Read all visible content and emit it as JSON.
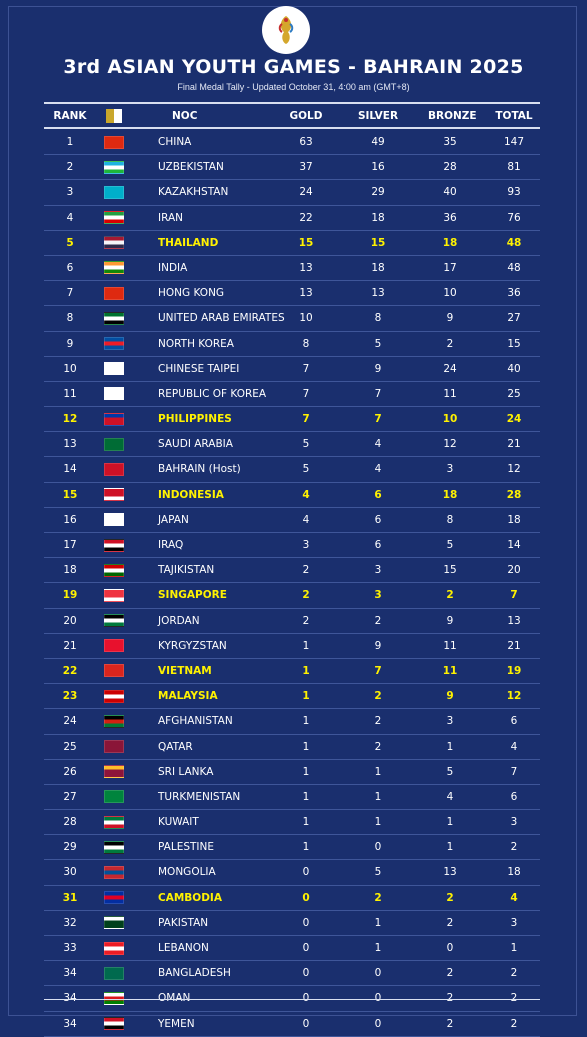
{
  "header": {
    "title": "3rd ASIAN YOUTH GAMES - BAHRAIN 2025",
    "subtitle": "Final Medal Tally  -  Updated October 31, 4:00 am (GMT+8)"
  },
  "colors": {
    "background": "#1a2f6e",
    "highlight": "#fff200",
    "text": "#ffffff"
  },
  "table": {
    "columns": {
      "rank": "RANK",
      "flag_icon": "flags-icon",
      "noc": "NOC",
      "gold": "GOLD",
      "silver": "SILVER",
      "bronze": "BRONZE",
      "total": "TOTAL"
    },
    "rows": [
      {
        "rank": "1",
        "noc": "CHINA",
        "gold": "63",
        "silver": "49",
        "bronze": "35",
        "total": "147",
        "highlight": false,
        "flag": [
          "#de2910",
          "#de2910",
          "#de2910"
        ]
      },
      {
        "rank": "2",
        "noc": "UZBEKISTAN",
        "gold": "37",
        "silver": "16",
        "bronze": "28",
        "total": "81",
        "highlight": false,
        "flag": [
          "#1eb3e0",
          "#ffffff",
          "#1eb53a"
        ]
      },
      {
        "rank": "3",
        "noc": "KAZAKHSTAN",
        "gold": "24",
        "silver": "29",
        "bronze": "40",
        "total": "93",
        "highlight": false,
        "flag": [
          "#00afca",
          "#00afca",
          "#00afca"
        ]
      },
      {
        "rank": "4",
        "noc": "IRAN",
        "gold": "22",
        "silver": "18",
        "bronze": "36",
        "total": "76",
        "highlight": false,
        "flag": [
          "#239f40",
          "#ffffff",
          "#da0000"
        ]
      },
      {
        "rank": "5",
        "noc": "THAILAND",
        "gold": "15",
        "silver": "15",
        "bronze": "18",
        "total": "48",
        "highlight": true,
        "flag": [
          "#a51931",
          "#f4f5f8",
          "#2d2a4a"
        ]
      },
      {
        "rank": "6",
        "noc": "INDIA",
        "gold": "13",
        "silver": "18",
        "bronze": "17",
        "total": "48",
        "highlight": false,
        "flag": [
          "#ff9933",
          "#ffffff",
          "#138808"
        ]
      },
      {
        "rank": "7",
        "noc": "HONG KONG",
        "gold": "13",
        "silver": "13",
        "bronze": "10",
        "total": "36",
        "highlight": false,
        "flag": [
          "#de2910",
          "#de2910",
          "#de2910"
        ]
      },
      {
        "rank": "8",
        "noc": "UNITED ARAB EMIRATES",
        "gold": "10",
        "silver": "8",
        "bronze": "9",
        "total": "27",
        "highlight": false,
        "flag": [
          "#00732f",
          "#ffffff",
          "#000000"
        ]
      },
      {
        "rank": "9",
        "noc": "NORTH KOREA",
        "gold": "8",
        "silver": "5",
        "bronze": "2",
        "total": "15",
        "highlight": false,
        "flag": [
          "#024fa2",
          "#ed1c27",
          "#024fa2"
        ]
      },
      {
        "rank": "10",
        "noc": "CHINESE TAIPEI",
        "gold": "7",
        "silver": "9",
        "bronze": "24",
        "total": "40",
        "highlight": false,
        "flag": [
          "#ffffff",
          "#ffffff",
          "#ffffff"
        ]
      },
      {
        "rank": "11",
        "noc": "REPUBLIC OF KOREA",
        "gold": "7",
        "silver": "7",
        "bronze": "11",
        "total": "25",
        "highlight": false,
        "flag": [
          "#ffffff",
          "#ffffff",
          "#ffffff"
        ]
      },
      {
        "rank": "12",
        "noc": "PHILIPPINES",
        "gold": "7",
        "silver": "7",
        "bronze": "10",
        "total": "24",
        "highlight": true,
        "flag": [
          "#0038a8",
          "#ce1126",
          "#ce1126"
        ]
      },
      {
        "rank": "13",
        "noc": "SAUDI ARABIA",
        "gold": "5",
        "silver": "4",
        "bronze": "12",
        "total": "21",
        "highlight": false,
        "flag": [
          "#006c35",
          "#006c35",
          "#006c35"
        ]
      },
      {
        "rank": "14",
        "noc": "BAHRAIN (Host)",
        "gold": "5",
        "silver": "4",
        "bronze": "3",
        "total": "12",
        "highlight": false,
        "flag": [
          "#ce1126",
          "#ce1126",
          "#ce1126"
        ]
      },
      {
        "rank": "15",
        "noc": "INDONESIA",
        "gold": "4",
        "silver": "6",
        "bronze": "18",
        "total": "28",
        "highlight": true,
        "flag": [
          "#ce1126",
          "#ce1126",
          "#ffffff"
        ]
      },
      {
        "rank": "16",
        "noc": "JAPAN",
        "gold": "4",
        "silver": "6",
        "bronze": "8",
        "total": "18",
        "highlight": false,
        "flag": [
          "#ffffff",
          "#ffffff",
          "#ffffff"
        ]
      },
      {
        "rank": "17",
        "noc": "IRAQ",
        "gold": "3",
        "silver": "6",
        "bronze": "5",
        "total": "14",
        "highlight": false,
        "flag": [
          "#ce1126",
          "#ffffff",
          "#000000"
        ]
      },
      {
        "rank": "18",
        "noc": "TAJIKISTAN",
        "gold": "2",
        "silver": "3",
        "bronze": "15",
        "total": "20",
        "highlight": false,
        "flag": [
          "#cc0000",
          "#ffffff",
          "#006600"
        ]
      },
      {
        "rank": "19",
        "noc": "SINGAPORE",
        "gold": "2",
        "silver": "3",
        "bronze": "2",
        "total": "7",
        "highlight": true,
        "flag": [
          "#ef3340",
          "#ef3340",
          "#ffffff"
        ]
      },
      {
        "rank": "20",
        "noc": "JORDAN",
        "gold": "2",
        "silver": "2",
        "bronze": "9",
        "total": "13",
        "highlight": false,
        "flag": [
          "#000000",
          "#ffffff",
          "#007a3d"
        ]
      },
      {
        "rank": "21",
        "noc": "KYRGYZSTAN",
        "gold": "1",
        "silver": "9",
        "bronze": "11",
        "total": "21",
        "highlight": false,
        "flag": [
          "#e8112d",
          "#e8112d",
          "#e8112d"
        ]
      },
      {
        "rank": "22",
        "noc": "VIETNAM",
        "gold": "1",
        "silver": "7",
        "bronze": "11",
        "total": "19",
        "highlight": true,
        "flag": [
          "#da251d",
          "#da251d",
          "#da251d"
        ]
      },
      {
        "rank": "23",
        "noc": "MALAYSIA",
        "gold": "1",
        "silver": "2",
        "bronze": "9",
        "total": "12",
        "highlight": true,
        "flag": [
          "#cc0001",
          "#ffffff",
          "#cc0001"
        ]
      },
      {
        "rank": "24",
        "noc": "AFGHANISTAN",
        "gold": "1",
        "silver": "2",
        "bronze": "3",
        "total": "6",
        "highlight": false,
        "flag": [
          "#000000",
          "#d32011",
          "#007a36"
        ]
      },
      {
        "rank": "25",
        "noc": "QATAR",
        "gold": "1",
        "silver": "2",
        "bronze": "1",
        "total": "4",
        "highlight": false,
        "flag": [
          "#8a1538",
          "#8a1538",
          "#8a1538"
        ]
      },
      {
        "rank": "26",
        "noc": "SRI LANKA",
        "gold": "1",
        "silver": "1",
        "bronze": "5",
        "total": "7",
        "highlight": false,
        "flag": [
          "#ffbe29",
          "#8d153a",
          "#8d153a"
        ]
      },
      {
        "rank": "27",
        "noc": "TURKMENISTAN",
        "gold": "1",
        "silver": "1",
        "bronze": "4",
        "total": "6",
        "highlight": false,
        "flag": [
          "#00843d",
          "#00843d",
          "#00843d"
        ]
      },
      {
        "rank": "28",
        "noc": "KUWAIT",
        "gold": "1",
        "silver": "1",
        "bronze": "1",
        "total": "3",
        "highlight": false,
        "flag": [
          "#007a3d",
          "#ffffff",
          "#ce1126"
        ]
      },
      {
        "rank": "29",
        "noc": "PALESTINE",
        "gold": "1",
        "silver": "0",
        "bronze": "1",
        "total": "2",
        "highlight": false,
        "flag": [
          "#000000",
          "#ffffff",
          "#007a3d"
        ]
      },
      {
        "rank": "30",
        "noc": "MONGOLIA",
        "gold": "0",
        "silver": "5",
        "bronze": "13",
        "total": "18",
        "highlight": false,
        "flag": [
          "#c4272f",
          "#015197",
          "#c4272f"
        ]
      },
      {
        "rank": "31",
        "noc": "CAMBODIA",
        "gold": "0",
        "silver": "2",
        "bronze": "2",
        "total": "4",
        "highlight": true,
        "flag": [
          "#032ea1",
          "#e00025",
          "#032ea1"
        ]
      },
      {
        "rank": "32",
        "noc": "PAKISTAN",
        "gold": "0",
        "silver": "1",
        "bronze": "2",
        "total": "3",
        "highlight": false,
        "flag": [
          "#ffffff",
          "#01411c",
          "#01411c"
        ]
      },
      {
        "rank": "33",
        "noc": "LEBANON",
        "gold": "0",
        "silver": "1",
        "bronze": "0",
        "total": "1",
        "highlight": false,
        "flag": [
          "#ed1c24",
          "#ffffff",
          "#ed1c24"
        ]
      },
      {
        "rank": "34",
        "noc": "BANGLADESH",
        "gold": "0",
        "silver": "0",
        "bronze": "2",
        "total": "2",
        "highlight": false,
        "flag": [
          "#006a4e",
          "#006a4e",
          "#006a4e"
        ]
      },
      {
        "rank": "34",
        "noc": "OMAN",
        "gold": "0",
        "silver": "0",
        "bronze": "2",
        "total": "2",
        "highlight": false,
        "flag": [
          "#ffffff",
          "#db161b",
          "#008000"
        ]
      },
      {
        "rank": "34",
        "noc": "YEMEN",
        "gold": "0",
        "silver": "0",
        "bronze": "2",
        "total": "2",
        "highlight": false,
        "flag": [
          "#ce1126",
          "#ffffff",
          "#000000"
        ]
      }
    ]
  }
}
